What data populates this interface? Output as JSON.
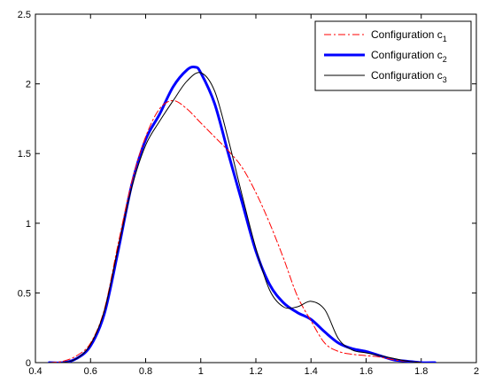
{
  "chart_data": {
    "type": "line",
    "title": "",
    "xlabel": "",
    "ylabel": "",
    "xlim": [
      0.4,
      2.0
    ],
    "ylim": [
      0,
      2.5
    ],
    "x_ticks": [
      "0.4",
      "0.6",
      "0.8",
      "1",
      "1.2",
      "1.4",
      "1.6",
      "1.8",
      "2"
    ],
    "y_ticks": [
      "0",
      "0.5",
      "1",
      "1.5",
      "2",
      "2.5"
    ],
    "grid": false,
    "legend_position": "top-right",
    "series": [
      {
        "name": "Configuration c",
        "subscript": "1",
        "color": "#ff0000",
        "style": "dash-dot",
        "points": [
          [
            0.45,
            0.0
          ],
          [
            0.5,
            0.01
          ],
          [
            0.55,
            0.05
          ],
          [
            0.6,
            0.14
          ],
          [
            0.65,
            0.38
          ],
          [
            0.7,
            0.85
          ],
          [
            0.75,
            1.3
          ],
          [
            0.8,
            1.62
          ],
          [
            0.85,
            1.82
          ],
          [
            0.9,
            1.88
          ],
          [
            0.95,
            1.82
          ],
          [
            1.0,
            1.72
          ],
          [
            1.05,
            1.62
          ],
          [
            1.1,
            1.52
          ],
          [
            1.15,
            1.4
          ],
          [
            1.2,
            1.22
          ],
          [
            1.25,
            1.0
          ],
          [
            1.3,
            0.75
          ],
          [
            1.35,
            0.48
          ],
          [
            1.4,
            0.3
          ],
          [
            1.45,
            0.14
          ],
          [
            1.5,
            0.08
          ],
          [
            1.55,
            0.06
          ],
          [
            1.6,
            0.05
          ],
          [
            1.65,
            0.04
          ],
          [
            1.7,
            0.02
          ],
          [
            1.75,
            0.01
          ],
          [
            1.8,
            0.0
          ]
        ]
      },
      {
        "name": "Configuration c",
        "subscript": "2",
        "color": "#0000ff",
        "style": "solid-thick",
        "points": [
          [
            0.45,
            0.0
          ],
          [
            0.5,
            0.0
          ],
          [
            0.55,
            0.03
          ],
          [
            0.6,
            0.12
          ],
          [
            0.65,
            0.35
          ],
          [
            0.7,
            0.8
          ],
          [
            0.75,
            1.28
          ],
          [
            0.8,
            1.6
          ],
          [
            0.85,
            1.78
          ],
          [
            0.9,
            1.98
          ],
          [
            0.95,
            2.1
          ],
          [
            0.98,
            2.12
          ],
          [
            1.0,
            2.08
          ],
          [
            1.05,
            1.86
          ],
          [
            1.1,
            1.5
          ],
          [
            1.15,
            1.15
          ],
          [
            1.2,
            0.8
          ],
          [
            1.25,
            0.56
          ],
          [
            1.3,
            0.43
          ],
          [
            1.35,
            0.36
          ],
          [
            1.4,
            0.31
          ],
          [
            1.45,
            0.22
          ],
          [
            1.5,
            0.14
          ],
          [
            1.55,
            0.1
          ],
          [
            1.6,
            0.08
          ],
          [
            1.65,
            0.05
          ],
          [
            1.7,
            0.02
          ],
          [
            1.75,
            0.01
          ],
          [
            1.8,
            0.0
          ],
          [
            1.85,
            0.0
          ]
        ]
      },
      {
        "name": "Configuration c",
        "subscript": "3",
        "color": "#000000",
        "style": "solid-thin",
        "points": [
          [
            0.45,
            0.0
          ],
          [
            0.5,
            0.0
          ],
          [
            0.55,
            0.03
          ],
          [
            0.6,
            0.13
          ],
          [
            0.65,
            0.37
          ],
          [
            0.7,
            0.82
          ],
          [
            0.75,
            1.26
          ],
          [
            0.8,
            1.56
          ],
          [
            0.85,
            1.73
          ],
          [
            0.9,
            1.88
          ],
          [
            0.95,
            2.02
          ],
          [
            1.0,
            2.08
          ],
          [
            1.05,
            1.95
          ],
          [
            1.1,
            1.6
          ],
          [
            1.15,
            1.2
          ],
          [
            1.2,
            0.82
          ],
          [
            1.25,
            0.52
          ],
          [
            1.3,
            0.4
          ],
          [
            1.35,
            0.4
          ],
          [
            1.4,
            0.44
          ],
          [
            1.45,
            0.38
          ],
          [
            1.5,
            0.17
          ],
          [
            1.55,
            0.09
          ],
          [
            1.6,
            0.07
          ],
          [
            1.65,
            0.05
          ],
          [
            1.7,
            0.03
          ],
          [
            1.75,
            0.01
          ],
          [
            1.8,
            0.0
          ]
        ]
      }
    ]
  }
}
